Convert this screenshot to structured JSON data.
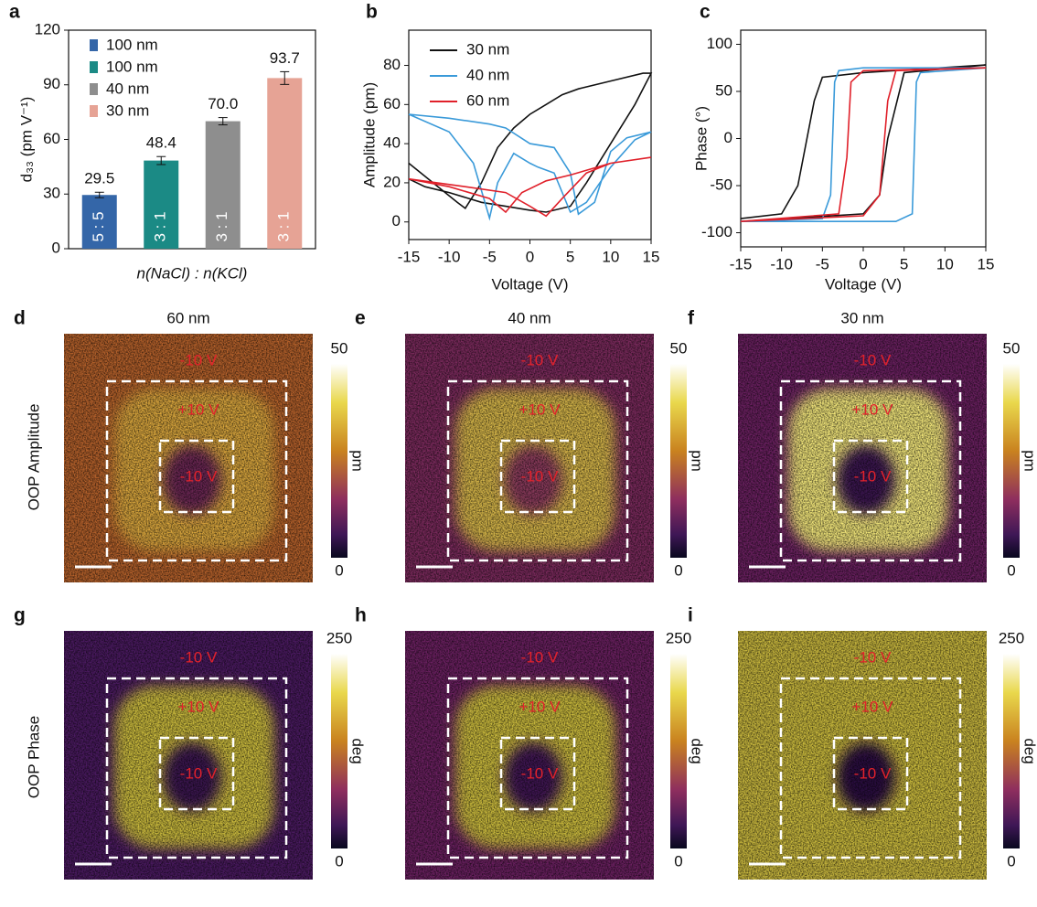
{
  "chart_data": [
    {
      "type": "bar",
      "label": "a",
      "ylabel": "d₃₃ (pm V⁻¹)",
      "xlabel": "n(NaCl) : n(KCl)",
      "categories": [
        "5 : 5",
        "3 : 1",
        "3 : 1",
        "3 : 1"
      ],
      "values": [
        29.5,
        48.4,
        70.0,
        93.7
      ],
      "value_labels": [
        "29.5",
        "48.4",
        "70.0",
        "93.7"
      ],
      "errors": [
        1.5,
        2.2,
        2.0,
        3.5
      ],
      "colors": [
        "#3466a8",
        "#1b8a85",
        "#8e8e8e",
        "#e6a395"
      ],
      "legend": [
        "100 nm",
        "100 nm",
        "40 nm",
        "30 nm"
      ],
      "ylim": [
        0,
        120
      ],
      "yticks": [
        0,
        30,
        60,
        90,
        120
      ]
    },
    {
      "type": "line",
      "label": "b",
      "ylabel": "Amplitude (pm)",
      "xlabel": "Voltage (V)",
      "xlim": [
        -15,
        15
      ],
      "xticks": [
        -15,
        -10,
        -5,
        0,
        5,
        10,
        15
      ],
      "ylim": [
        -9,
        98
      ],
      "yticks": [
        0,
        20,
        40,
        60,
        80
      ],
      "series": [
        {
          "name": "30 nm",
          "color": "#111111",
          "x": [
            -15,
            -12,
            -9,
            -8,
            -6,
            -4,
            -2,
            0,
            2,
            4,
            6,
            10,
            14,
            15,
            13,
            10,
            7,
            5,
            2,
            0,
            -3,
            -6,
            -10,
            -13,
            -15
          ],
          "values": [
            30,
            20,
            10,
            7,
            20,
            38,
            48,
            55,
            60,
            65,
            68,
            72,
            76,
            76,
            60,
            40,
            20,
            8,
            5,
            6,
            8,
            10,
            15,
            18,
            22
          ]
        },
        {
          "name": "40 nm",
          "color": "#3a9ad9",
          "x": [
            -15,
            -10,
            -7,
            -5,
            -4,
            -2,
            0,
            1,
            3,
            5,
            7,
            10,
            13,
            15,
            12,
            10,
            8,
            6,
            5,
            3,
            0,
            -3,
            -5,
            -10,
            -15
          ],
          "values": [
            55,
            46,
            30,
            2,
            20,
            35,
            30,
            28,
            25,
            5,
            10,
            28,
            42,
            46,
            43,
            36,
            10,
            4,
            25,
            38,
            40,
            48,
            50,
            53,
            55
          ]
        },
        {
          "name": "60 nm",
          "color": "#e0202a",
          "x": [
            -15,
            -10,
            -5,
            -3,
            -1,
            2,
            5,
            10,
            15,
            10,
            7,
            4,
            2,
            0,
            -3,
            -8,
            -15
          ],
          "values": [
            22,
            18,
            12,
            5,
            15,
            21,
            24,
            30,
            33,
            30,
            25,
            12,
            3,
            8,
            15,
            18,
            22
          ]
        }
      ]
    },
    {
      "type": "line",
      "label": "c",
      "ylabel": "Phase (°)",
      "xlabel": "Voltage (V)",
      "xlim": [
        -15,
        15
      ],
      "xticks": [
        -15,
        -10,
        -5,
        0,
        5,
        10,
        15
      ],
      "ylim": [
        -115,
        115
      ],
      "yticks": [
        -100,
        -50,
        0,
        50,
        100
      ],
      "series": [
        {
          "name": "30 nm",
          "color": "#111111",
          "x": [
            -15,
            -10,
            -8,
            -6,
            -5,
            0,
            15,
            5,
            3,
            2,
            0,
            -15
          ],
          "values": [
            -85,
            -80,
            -50,
            40,
            65,
            70,
            78,
            70,
            0,
            -60,
            -80,
            -88
          ]
        },
        {
          "name": "40 nm",
          "color": "#3a9ad9",
          "x": [
            -15,
            -5,
            -4,
            -3.5,
            -3,
            0,
            15,
            7,
            6.5,
            6,
            4,
            0,
            -15
          ],
          "values": [
            -88,
            -85,
            -60,
            60,
            72,
            75,
            75,
            70,
            60,
            -80,
            -88,
            -88,
            -88
          ]
        },
        {
          "name": "60 nm",
          "color": "#e0202a",
          "x": [
            -15,
            -3,
            -2,
            -1.5,
            0,
            15,
            4,
            3,
            2,
            0,
            -15
          ],
          "values": [
            -88,
            -80,
            -20,
            60,
            72,
            75,
            72,
            40,
            -60,
            -82,
            -88
          ]
        }
      ]
    }
  ],
  "maps": {
    "row_labels": [
      "OOP  Amplitude",
      "OOP  Phase"
    ],
    "panels": [
      {
        "letter": "d",
        "title": "60 nm",
        "outer_label": "-10 V",
        "middle_label": "+10 V",
        "inner_label": "-10 V",
        "colorbar_max": 50,
        "colorbar_min": 0,
        "unit": "pm"
      },
      {
        "letter": "e",
        "title": "40 nm",
        "outer_label": "-10 V",
        "middle_label": "+10 V",
        "inner_label": "-10 V",
        "colorbar_max": 50,
        "colorbar_min": 0,
        "unit": "pm"
      },
      {
        "letter": "f",
        "title": "30 nm",
        "outer_label": "-10 V",
        "middle_label": "+10 V",
        "inner_label": "-10 V",
        "colorbar_max": 50,
        "colorbar_min": 0,
        "unit": "pm"
      },
      {
        "letter": "g",
        "outer_label": "-10 V",
        "middle_label": "+10 V",
        "inner_label": "-10 V",
        "colorbar_max": 250,
        "colorbar_min": 0,
        "unit": "deg"
      },
      {
        "letter": "h",
        "outer_label": "-10 V",
        "middle_label": "+10 V",
        "inner_label": "-10 V",
        "colorbar_max": 250,
        "colorbar_min": 0,
        "unit": "deg"
      },
      {
        "letter": "i",
        "outer_label": "-10 V",
        "middle_label": "+10 V",
        "inner_label": "-10 V",
        "colorbar_max": 250,
        "colorbar_min": 0,
        "unit": "deg"
      }
    ]
  }
}
